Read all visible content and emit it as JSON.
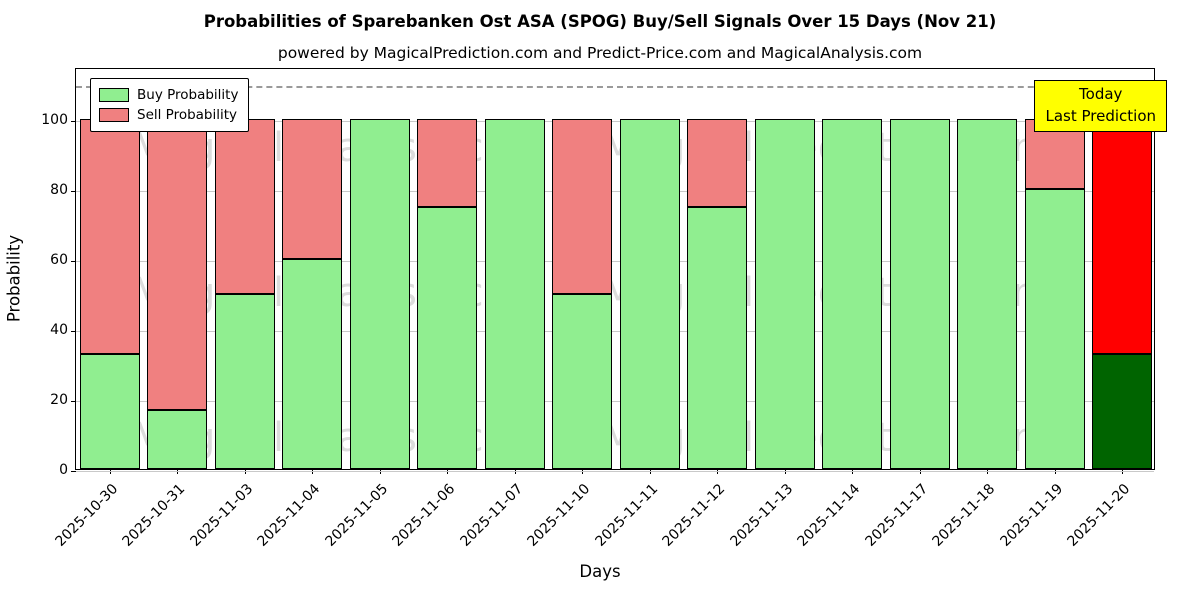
{
  "chart_data": {
    "type": "bar",
    "stacked": true,
    "title": "Probabilities of Sparebanken Ost ASA (SPOG) Buy/Sell Signals Over 15 Days (Nov 21)",
    "subtitle": "powered by MagicalPrediction.com and Predict-Price.com and MagicalAnalysis.com",
    "xlabel": "Days",
    "ylabel": "Probability",
    "ylim": [
      0,
      115
    ],
    "yticks": [
      0,
      20,
      40,
      60,
      80,
      100
    ],
    "dashed_line_y": 110,
    "grid": "horizontal",
    "legend_position": "upper left",
    "categories": [
      "2025-10-30",
      "2025-10-31",
      "2025-11-03",
      "2025-11-04",
      "2025-11-05",
      "2025-11-06",
      "2025-11-07",
      "2025-11-10",
      "2025-11-11",
      "2025-11-12",
      "2025-11-13",
      "2025-11-14",
      "2025-11-17",
      "2025-11-18",
      "2025-11-19",
      "2025-11-20"
    ],
    "series": [
      {
        "name": "Buy Probability",
        "color": "#90ee90",
        "values": [
          33,
          17,
          50,
          60,
          100,
          75,
          100,
          50,
          100,
          75,
          100,
          100,
          100,
          100,
          80,
          33
        ]
      },
      {
        "name": "Sell Probability",
        "color": "#f08080",
        "values": [
          67,
          83,
          50,
          40,
          0,
          25,
          0,
          50,
          0,
          25,
          0,
          0,
          0,
          0,
          20,
          67
        ]
      }
    ],
    "last_bar_colors": {
      "buy": "#006400",
      "sell": "#ff0000"
    },
    "bar_edge_color": "#000000",
    "annotation": {
      "line1": "Today",
      "line2": "Last Prediction",
      "bg_color": "#ffff00"
    },
    "watermarks": {
      "left": "MagicalAnalysis.com",
      "right": "MagicalPrediction.com"
    }
  }
}
